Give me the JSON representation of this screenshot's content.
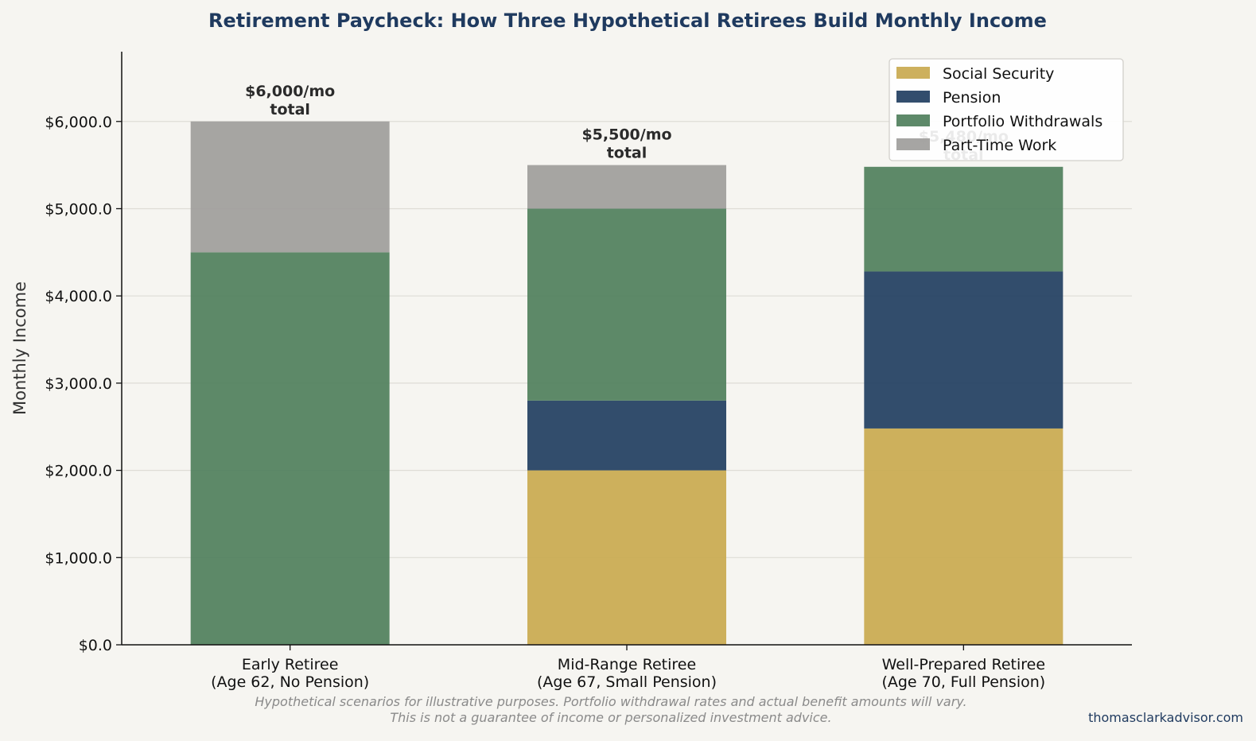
{
  "chart_data": {
    "type": "bar",
    "stacked": true,
    "title": "Retirement Paycheck: How Three Hypothetical Retirees Build Monthly Income",
    "ylabel": "Monthly Income",
    "xlabel": "",
    "ylim": [
      0,
      6800
    ],
    "yticks": [
      0,
      1000,
      2000,
      3000,
      4000,
      5000,
      6000
    ],
    "ytick_labels": [
      "$0.0",
      "$1,000.0",
      "$2,000.0",
      "$3,000.0",
      "$4,000.0",
      "$5,000.0",
      "$6,000.0"
    ],
    "grid": "horizontal",
    "legend_position": "top-right",
    "categories": [
      [
        "Early Retiree",
        "(Age 62, No Pension)"
      ],
      [
        "Mid-Range Retiree",
        "(Age 67, Small Pension)"
      ],
      [
        "Well-Prepared Retiree",
        "(Age 70, Full Pension)"
      ]
    ],
    "series": [
      {
        "name": "Social Security",
        "color": "#c9a94f",
        "values": [
          0,
          2000,
          2480
        ]
      },
      {
        "name": "Pension",
        "color": "#213e61",
        "values": [
          0,
          800,
          1800
        ]
      },
      {
        "name": "Portfolio Withdrawals",
        "color": "#4f7f5c",
        "values": [
          4500,
          2200,
          1200
        ]
      },
      {
        "name": "Part-Time Work",
        "color": "#9e9d9b",
        "values": [
          1500,
          500,
          0
        ]
      }
    ],
    "total_labels": [
      [
        "$6,000/mo",
        "total"
      ],
      [
        "$5,500/mo",
        "total"
      ],
      [
        "$5,480/mo",
        "total"
      ]
    ],
    "footnote": [
      "Hypothetical scenarios for illustrative purposes. Portfolio withdrawal rates and actual benefit amounts will vary.",
      "This is not a guarantee of income or personalized investment advice."
    ],
    "attribution": "thomasclarkadvisor.com"
  }
}
